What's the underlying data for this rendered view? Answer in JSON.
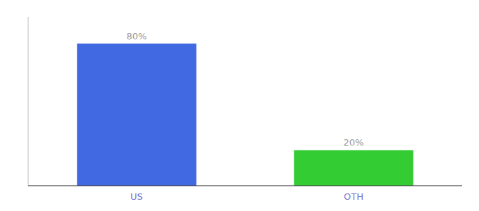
{
  "chart_data": {
    "type": "bar",
    "categories": [
      "US",
      "OTH"
    ],
    "values": [
      80,
      20
    ],
    "value_labels": [
      "80%",
      "20%"
    ],
    "colors": [
      "#4169e1",
      "#33cc33"
    ],
    "ylim": [
      0,
      95
    ],
    "data_labels": true,
    "tick_labels": "x"
  }
}
